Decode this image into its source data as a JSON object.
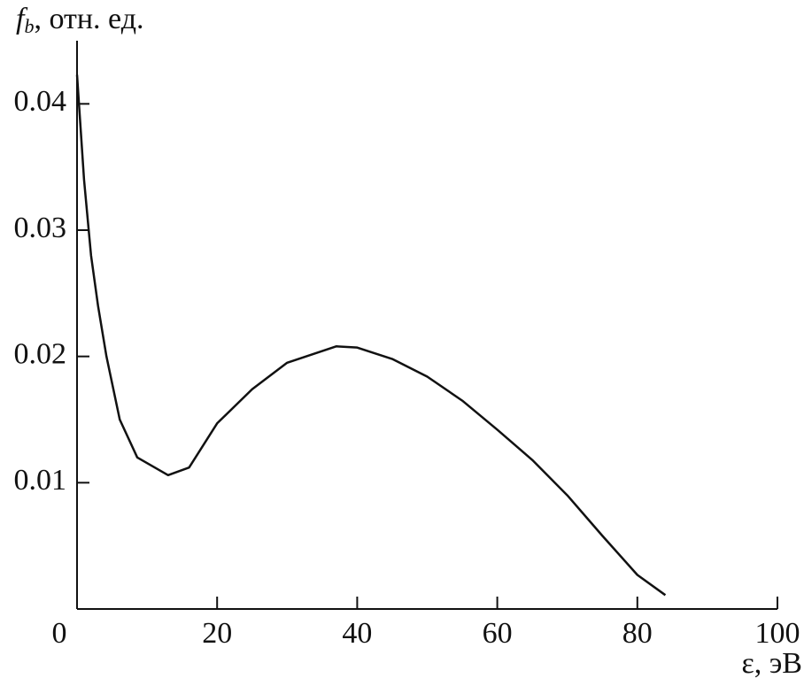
{
  "chart_data": {
    "type": "line",
    "y_label_symbol": "f",
    "y_label_sub": "b",
    "y_label_unit": ", отн. ед.",
    "x_label": "ε, эВ",
    "x": [
      0,
      1,
      2,
      3,
      4.2,
      6.1,
      8.6,
      13,
      16,
      20,
      25,
      30,
      37,
      40,
      45,
      50,
      55,
      60,
      65,
      70,
      75,
      80,
      84
    ],
    "series": [
      {
        "color": "#111111",
        "values": [
          0.0423,
          0.034,
          0.028,
          0.024,
          0.02,
          0.015,
          0.012,
          0.0106,
          0.0112,
          0.0147,
          0.0174,
          0.0195,
          0.0208,
          0.0207,
          0.0198,
          0.0184,
          0.0165,
          0.0142,
          0.0118,
          0.009,
          0.0058,
          0.0027,
          0.0011
        ]
      }
    ],
    "xlim": [
      0,
      100
    ],
    "xticks": [
      0,
      20,
      40,
      60,
      80,
      100
    ],
    "ylim": [
      0,
      0.045
    ],
    "yticks": [
      0.01,
      0.02,
      0.03,
      0.04
    ]
  }
}
